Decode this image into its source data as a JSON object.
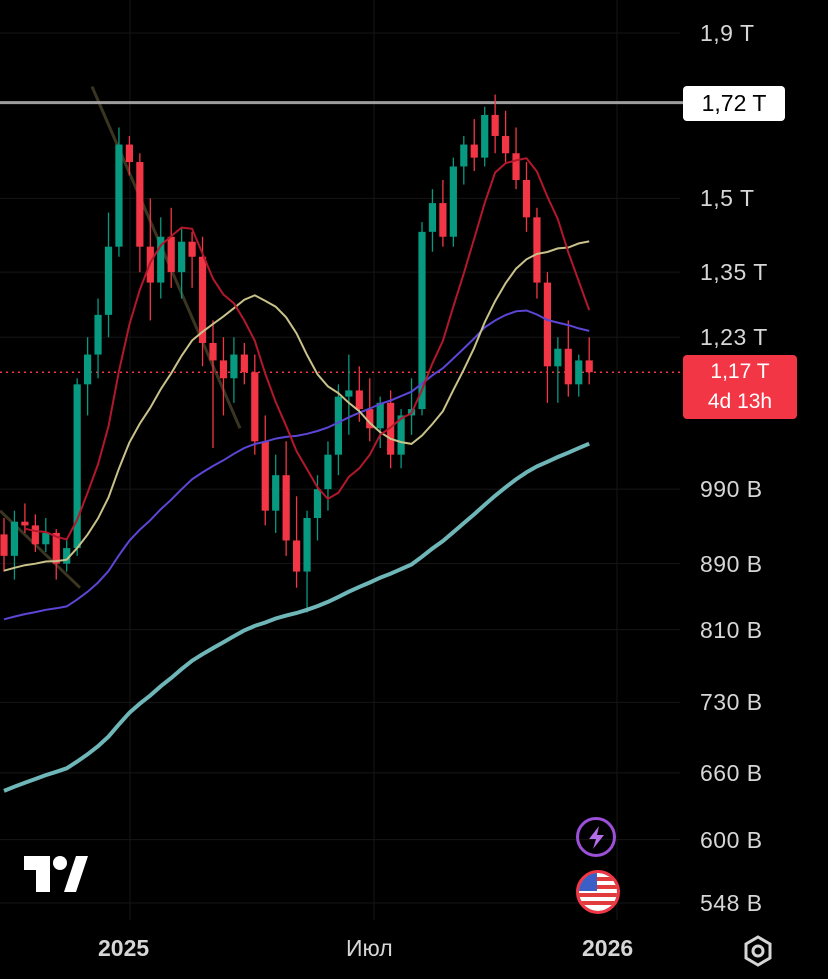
{
  "chart_data": {
    "type": "candlestick",
    "y_axis": {
      "scale": "log",
      "tick_labels": [
        "1,9 T",
        "1,5 T",
        "1,35 T",
        "1,23 T",
        "990 B",
        "890 B",
        "810 B",
        "730 B",
        "660 B",
        "600 B",
        "548 B"
      ],
      "tick_values": [
        1900,
        1500,
        1350,
        1230,
        990,
        890,
        810,
        730,
        660,
        600,
        548
      ]
    },
    "x_axis": {
      "tick_labels": [
        "2025",
        "Июл",
        "2026"
      ]
    },
    "horizontal_level": {
      "label": "1,72 T",
      "value": 1720
    },
    "last_price": {
      "label": "1,17 T",
      "value": 1170,
      "countdown": "4d 13h"
    },
    "colors": {
      "up": "#089981",
      "down": "#f23645",
      "ma_short": "#b2182b",
      "ma_mid": "#c9c28a",
      "ma_long": "#5b46d6",
      "ma_200": "#6fb6b8",
      "level": "#9e9e9e",
      "trendline": "#3a3520"
    },
    "candles": [
      [
        928,
        950,
        880,
        900
      ],
      [
        900,
        960,
        870,
        945
      ],
      [
        945,
        970,
        930,
        940
      ],
      [
        940,
        955,
        905,
        915
      ],
      [
        915,
        950,
        905,
        930
      ],
      [
        930,
        935,
        870,
        890
      ],
      [
        890,
        920,
        880,
        910
      ],
      [
        910,
        1160,
        900,
        1150
      ],
      [
        1150,
        1230,
        1100,
        1200
      ],
      [
        1200,
        1300,
        1160,
        1270
      ],
      [
        1270,
        1470,
        1230,
        1400
      ],
      [
        1400,
        1660,
        1380,
        1620
      ],
      [
        1620,
        1640,
        1550,
        1580
      ],
      [
        1580,
        1600,
        1350,
        1400
      ],
      [
        1400,
        1500,
        1260,
        1330
      ],
      [
        1330,
        1460,
        1300,
        1420
      ],
      [
        1420,
        1480,
        1320,
        1350
      ],
      [
        1350,
        1440,
        1300,
        1410
      ],
      [
        1410,
        1430,
        1320,
        1380
      ],
      [
        1380,
        1420,
        1180,
        1220
      ],
      [
        1220,
        1260,
        1050,
        1190
      ],
      [
        1190,
        1230,
        1100,
        1160
      ],
      [
        1160,
        1230,
        1120,
        1200
      ],
      [
        1200,
        1220,
        1150,
        1170
      ],
      [
        1170,
        1200,
        1040,
        1060
      ],
      [
        1060,
        1100,
        940,
        960
      ],
      [
        960,
        1040,
        930,
        1010
      ],
      [
        1010,
        1060,
        900,
        920
      ],
      [
        920,
        980,
        860,
        880
      ],
      [
        880,
        960,
        830,
        950
      ],
      [
        950,
        1010,
        920,
        990
      ],
      [
        990,
        1060,
        960,
        1040
      ],
      [
        1040,
        1150,
        1010,
        1130
      ],
      [
        1130,
        1200,
        1070,
        1140
      ],
      [
        1140,
        1180,
        1090,
        1110
      ],
      [
        1110,
        1160,
        1060,
        1080
      ],
      [
        1080,
        1130,
        1050,
        1120
      ],
      [
        1120,
        1140,
        1020,
        1040
      ],
      [
        1040,
        1110,
        1020,
        1100
      ],
      [
        1100,
        1160,
        1070,
        1110
      ],
      [
        1110,
        1450,
        1100,
        1430
      ],
      [
        1430,
        1520,
        1390,
        1490
      ],
      [
        1490,
        1540,
        1400,
        1420
      ],
      [
        1420,
        1590,
        1400,
        1570
      ],
      [
        1570,
        1640,
        1530,
        1620
      ],
      [
        1620,
        1680,
        1560,
        1590
      ],
      [
        1590,
        1710,
        1570,
        1690
      ],
      [
        1690,
        1740,
        1600,
        1640
      ],
      [
        1640,
        1700,
        1580,
        1600
      ],
      [
        1600,
        1660,
        1520,
        1540
      ],
      [
        1540,
        1580,
        1430,
        1460
      ],
      [
        1460,
        1480,
        1300,
        1330
      ],
      [
        1330,
        1350,
        1120,
        1180
      ],
      [
        1180,
        1230,
        1120,
        1210
      ],
      [
        1210,
        1260,
        1130,
        1150
      ],
      [
        1150,
        1200,
        1130,
        1190
      ],
      [
        1190,
        1230,
        1150,
        1170
      ]
    ]
  }
}
